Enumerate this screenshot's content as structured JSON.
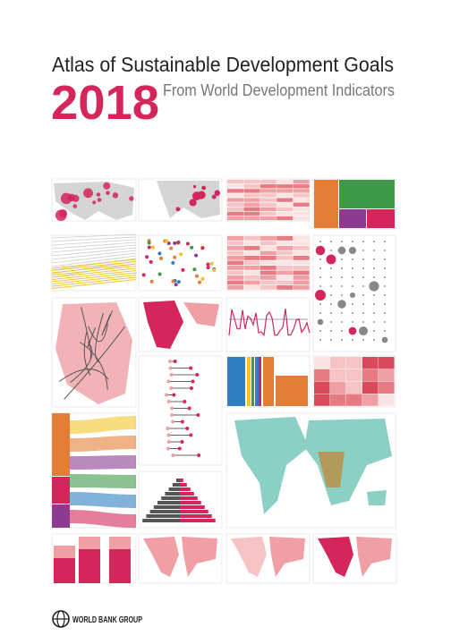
{
  "header": {
    "title": "Atlas of Sustainable Development Goals",
    "year": "2018",
    "subtitle": "From World Development Indicators"
  },
  "footer": {
    "publisher": "WORLD BANK GROUP"
  }
}
